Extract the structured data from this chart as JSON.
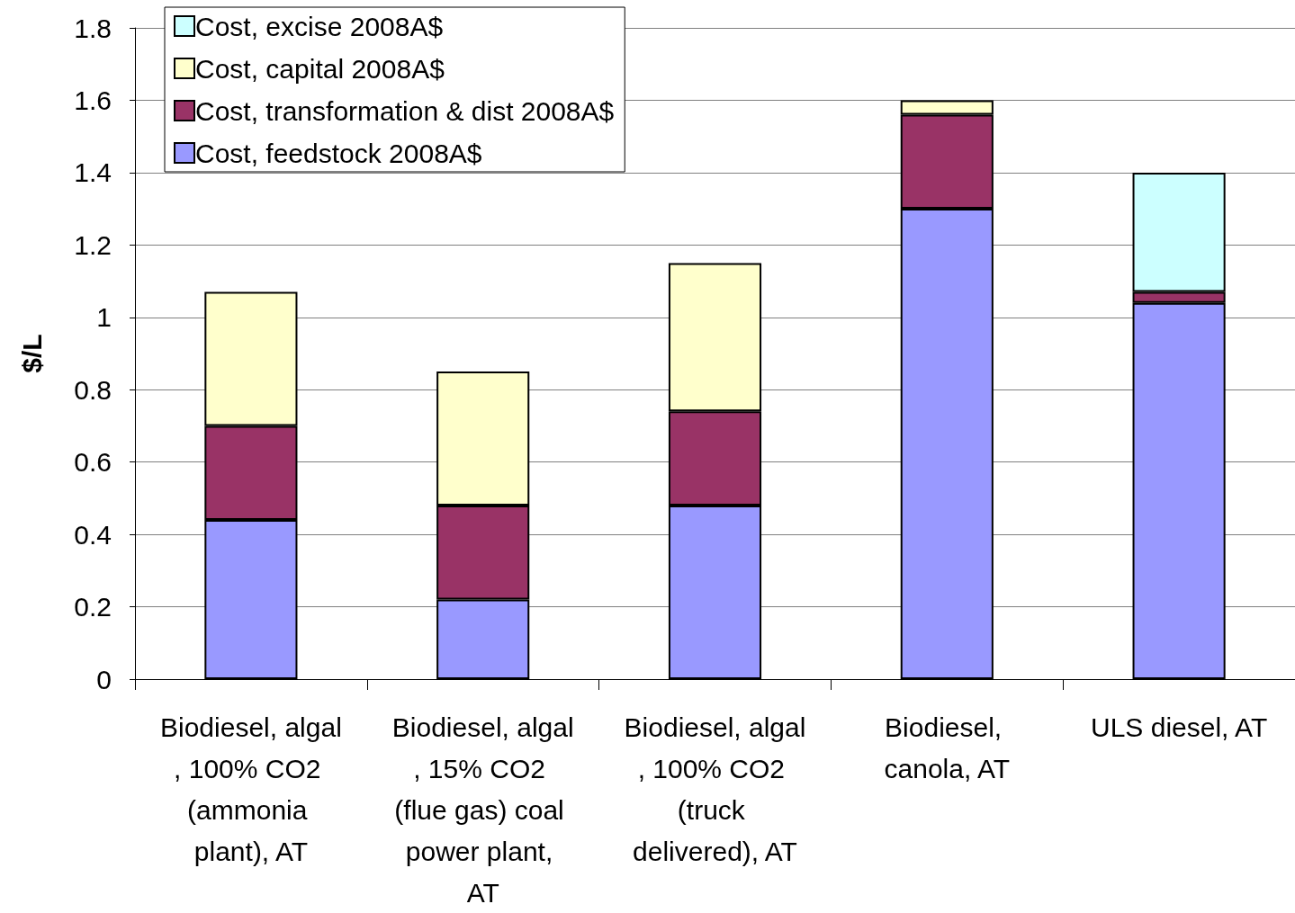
{
  "chart_data": {
    "type": "bar",
    "stacked": true,
    "ylabel": "$/L",
    "categories": [
      "Biodiesel, algal, 100% CO2 (ammonia plant), AT",
      "Biodiesel, algal, 15% CO2 (flue gas) coal power plant, AT",
      "Biodiesel, algal, 100% CO2 (truck delivered), AT",
      "Biodiesel, canola, AT",
      "ULS diesel, AT"
    ],
    "series": [
      {
        "name": "Cost, feedstock 2008A$",
        "color": "#9999ff",
        "values": [
          0.44,
          0.22,
          0.48,
          1.3,
          1.04
        ]
      },
      {
        "name": "Cost, transformation & dist 2008A$",
        "color": "#993366",
        "values": [
          0.26,
          0.26,
          0.26,
          0.26,
          0.03
        ]
      },
      {
        "name": "Cost, capital 2008A$",
        "color": "#ffffcc",
        "values": [
          0.37,
          0.37,
          0.41,
          0.04,
          null
        ]
      },
      {
        "name": "Cost, excise 2008A$",
        "color": "#ccffff",
        "values": [
          null,
          null,
          null,
          null,
          0.33
        ]
      }
    ],
    "ylim": [
      0,
      1.8
    ],
    "yticks": [
      0,
      0.2,
      0.4,
      0.6,
      0.8,
      1,
      1.2,
      1.4,
      1.6,
      1.8
    ],
    "grid": "y",
    "legend": "top left"
  }
}
